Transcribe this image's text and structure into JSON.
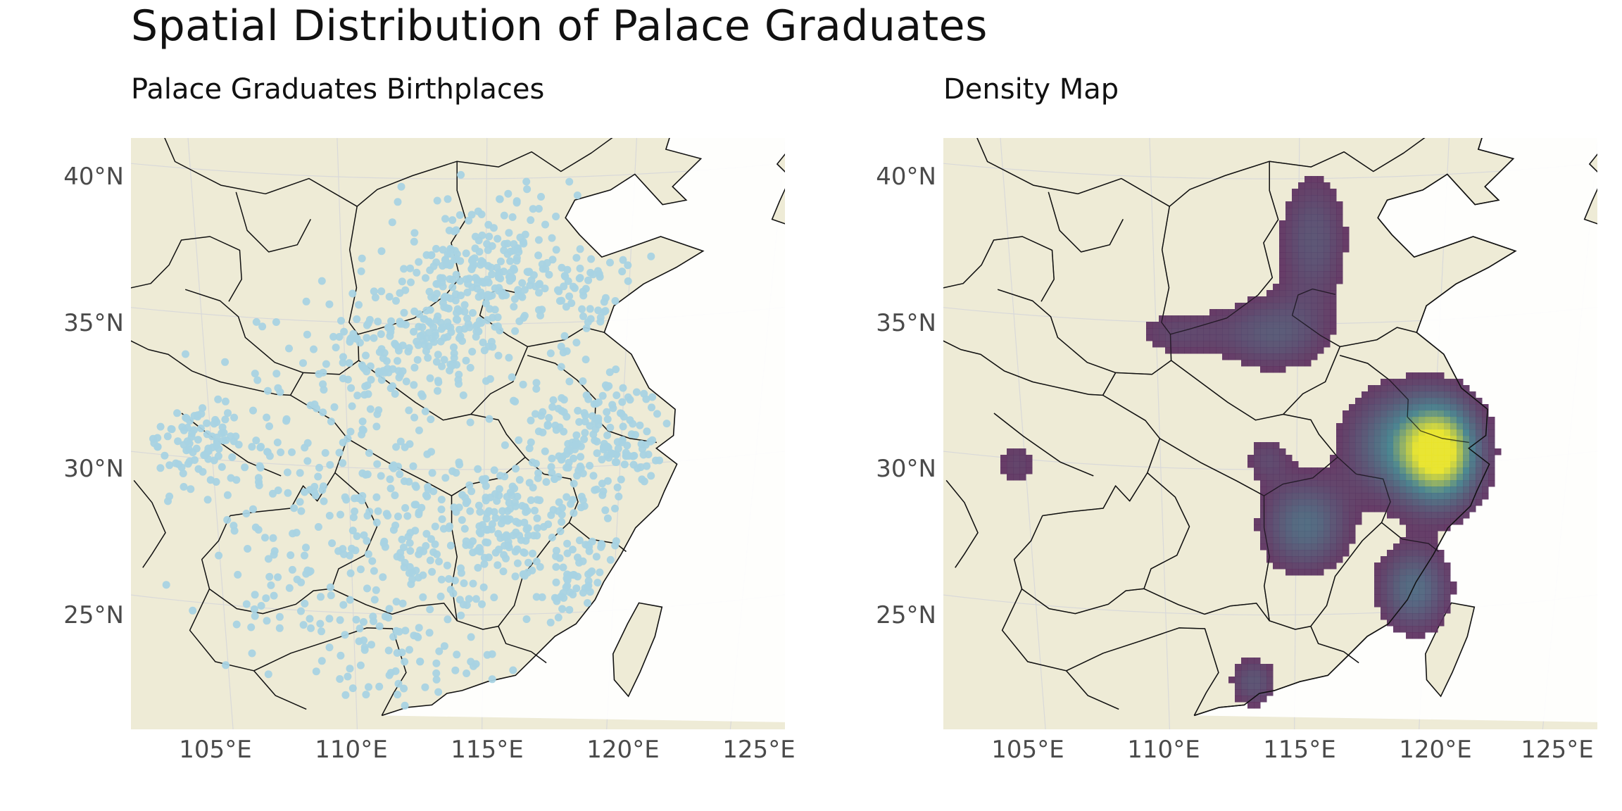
{
  "figure": {
    "title": "Spatial Distribution of Palace Graduates"
  },
  "panels": [
    {
      "id": "points",
      "title": "Palace Graduates Birthplaces"
    },
    {
      "id": "density",
      "title": "Density Map"
    }
  ],
  "axes": {
    "lat_labels": [
      "40°N",
      "35°N",
      "30°N",
      "25°N"
    ],
    "lon_labels": [
      "105°E",
      "110°E",
      "115°E",
      "120°E",
      "125°E"
    ]
  },
  "colors": {
    "land": "#eeebd6",
    "sea": "#ffffff",
    "boundary": "#111111",
    "points": "#a8d3e3",
    "density_low": "#5b2d5d",
    "density_mid": "#3f7e8c",
    "density_high": "#e8e425"
  },
  "chart_data": {
    "type": "map",
    "map_extent": {
      "lon": [
        102,
        126
      ],
      "lat": [
        21.5,
        41.5
      ]
    },
    "projection": "conic",
    "series": [
      {
        "panel": "points",
        "type": "scatter",
        "clusters": [
          {
            "lon": 115.0,
            "lat": 37.0,
            "spread": 1.6,
            "count": 220
          },
          {
            "lon": 113.5,
            "lat": 34.5,
            "spread": 1.5,
            "count": 140
          },
          {
            "lon": 111.0,
            "lat": 34.0,
            "spread": 1.3,
            "count": 70
          },
          {
            "lon": 118.5,
            "lat": 36.0,
            "spread": 1.2,
            "count": 70
          },
          {
            "lon": 104.5,
            "lat": 30.5,
            "spread": 1.0,
            "count": 90
          },
          {
            "lon": 119.0,
            "lat": 31.0,
            "spread": 1.4,
            "count": 200
          },
          {
            "lon": 116.0,
            "lat": 28.0,
            "spread": 1.4,
            "count": 140
          },
          {
            "lon": 119.0,
            "lat": 26.0,
            "spread": 1.0,
            "count": 80
          },
          {
            "lon": 113.0,
            "lat": 28.0,
            "spread": 1.8,
            "count": 110
          },
          {
            "lon": 110.0,
            "lat": 29.0,
            "spread": 2.0,
            "count": 80
          },
          {
            "lon": 112.5,
            "lat": 24.0,
            "spread": 1.8,
            "count": 90
          },
          {
            "lon": 107.0,
            "lat": 26.0,
            "spread": 2.0,
            "count": 60
          },
          {
            "lon": 108.0,
            "lat": 31.5,
            "spread": 2.0,
            "count": 60
          }
        ]
      },
      {
        "panel": "density",
        "type": "kde",
        "peaks": [
          {
            "lon": 120.2,
            "lat": 30.7,
            "sx": 1.0,
            "sy": 1.2,
            "weight": 1.0
          },
          {
            "lon": 118.5,
            "lat": 31.0,
            "sx": 1.3,
            "sy": 1.3,
            "weight": 0.45
          },
          {
            "lon": 115.2,
            "lat": 28.2,
            "sx": 1.1,
            "sy": 1.1,
            "weight": 0.45
          },
          {
            "lon": 119.2,
            "lat": 26.0,
            "sx": 0.9,
            "sy": 1.0,
            "weight": 0.45
          },
          {
            "lon": 114.0,
            "lat": 34.8,
            "sx": 1.4,
            "sy": 0.9,
            "weight": 0.32
          },
          {
            "lon": 115.5,
            "lat": 38.0,
            "sx": 0.9,
            "sy": 1.6,
            "weight": 0.3
          },
          {
            "lon": 110.5,
            "lat": 34.8,
            "sx": 1.2,
            "sy": 0.6,
            "weight": 0.2
          },
          {
            "lon": 113.3,
            "lat": 22.8,
            "sx": 0.6,
            "sy": 0.6,
            "weight": 0.3
          },
          {
            "lon": 113.8,
            "lat": 30.5,
            "sx": 0.6,
            "sy": 0.6,
            "weight": 0.2
          },
          {
            "lon": 104.6,
            "lat": 30.3,
            "sx": 0.6,
            "sy": 0.7,
            "weight": 0.18
          }
        ]
      }
    ]
  }
}
